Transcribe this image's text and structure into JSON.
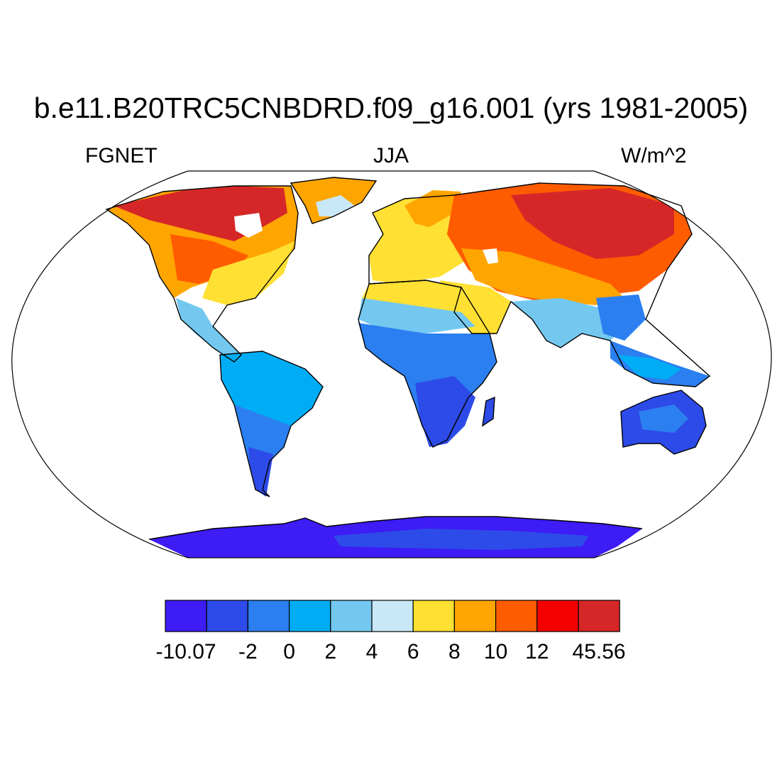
{
  "title": "b.e11.B20TRC5CNBDRD.f09_g16.001 (yrs 1981-2005)",
  "subtitle_left": "FGNET",
  "subtitle_center": "JJA",
  "subtitle_right": "W/m^2",
  "projection": "Robinson",
  "colorbar": {
    "labels": [
      "-10.07",
      "-2",
      "0",
      "2",
      "4",
      "6",
      "8",
      "10",
      "12",
      "45.56"
    ],
    "colors": [
      "#3d1cf5",
      "#2d4be8",
      "#2b7ff0",
      "#00adf5",
      "#74c8f0",
      "#c8e8f8",
      "#ffe033",
      "#ffa500",
      "#ff5c00",
      "#f50000",
      "#d62728"
    ]
  },
  "ocean_color": "#ffffff",
  "coastline_color": "#000000"
}
